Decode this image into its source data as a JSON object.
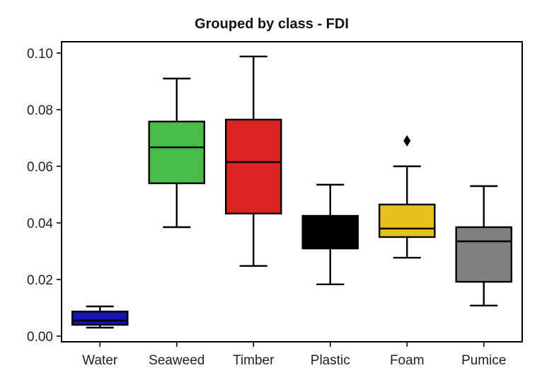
{
  "chart_data": {
    "type": "box",
    "title": "Grouped by class - FDI",
    "xlabel": "",
    "ylabel": "",
    "ylim": [
      -0.002,
      0.104
    ],
    "yticks": [
      0.0,
      0.02,
      0.04,
      0.06,
      0.08,
      0.1
    ],
    "ytick_labels": [
      "0.00",
      "0.02",
      "0.04",
      "0.06",
      "0.08",
      "0.10"
    ],
    "grid": false,
    "legend": "none",
    "categories": [
      "Water",
      "Seaweed",
      "Timber",
      "Plastic",
      "Foam",
      "Pumice"
    ],
    "boxes": [
      {
        "category": "Water",
        "whisker_low": 0.003,
        "q1": 0.004,
        "median": 0.0055,
        "q3": 0.0087,
        "whisker_high": 0.0105,
        "outliers": [],
        "color": "#1515b4"
      },
      {
        "category": "Seaweed",
        "whisker_low": 0.0385,
        "q1": 0.054,
        "median": 0.0667,
        "q3": 0.0758,
        "whisker_high": 0.091,
        "outliers": [],
        "color": "#46bd46"
      },
      {
        "category": "Timber",
        "whisker_low": 0.0248,
        "q1": 0.0433,
        "median": 0.0615,
        "q3": 0.0765,
        "whisker_high": 0.0988,
        "outliers": [],
        "color": "#dd2222"
      },
      {
        "category": "Plastic",
        "whisker_low": 0.0183,
        "q1": 0.031,
        "median": 0.031,
        "q3": 0.0425,
        "whisker_high": 0.0535,
        "outliers": [],
        "color": "#000000"
      },
      {
        "category": "Foam",
        "whisker_low": 0.0277,
        "q1": 0.035,
        "median": 0.038,
        "q3": 0.0465,
        "whisker_high": 0.06,
        "outliers": [
          0.069
        ],
        "color": "#e6c01e"
      },
      {
        "category": "Pumice",
        "whisker_low": 0.0108,
        "q1": 0.0192,
        "median": 0.0335,
        "q3": 0.0385,
        "whisker_high": 0.053,
        "outliers": [],
        "color": "#808080"
      }
    ]
  }
}
